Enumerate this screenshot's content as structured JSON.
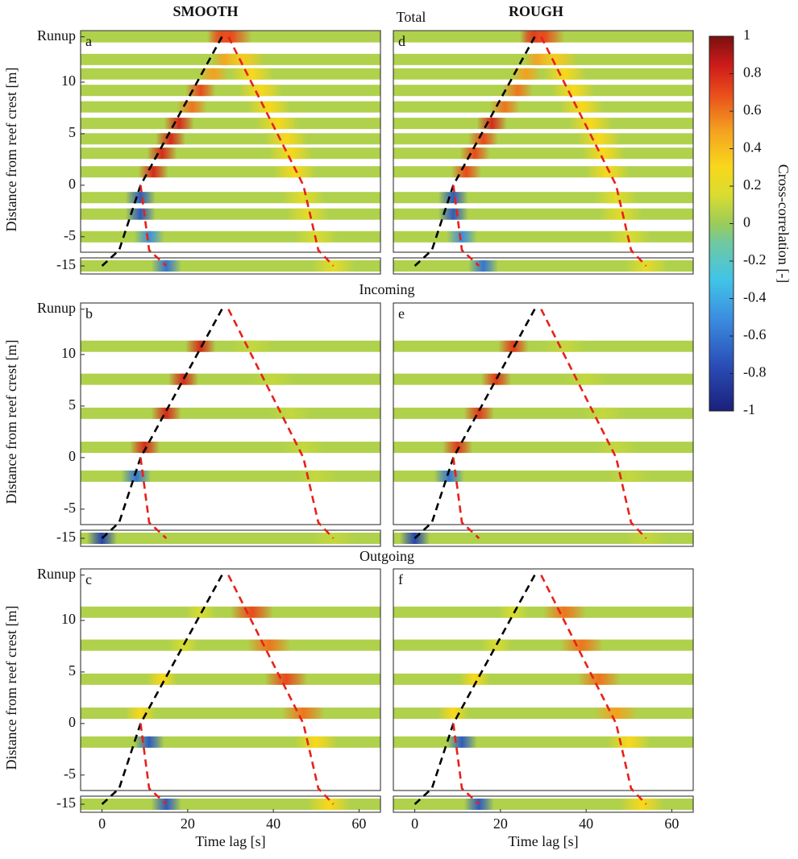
{
  "column_titles": [
    "SMOOTH",
    "ROUGH"
  ],
  "row_titles": [
    "Total",
    "Incoming",
    "Outgoing"
  ],
  "colorbar": {
    "label": "Cross-correlation [-]",
    "lim": [
      -1,
      1
    ],
    "ticks": [
      1,
      0.8,
      0.6,
      0.4,
      0.2,
      0,
      -0.2,
      -0.4,
      -0.6,
      -0.8,
      -1
    ]
  },
  "chart_data": [
    {
      "type": "xcorr",
      "panel": "a",
      "ylabel": "Distance from reef crest [m]",
      "xlim": [
        -5,
        65
      ],
      "ylim": [
        -6.5,
        15
      ],
      "ylim_break": [
        -15.8,
        -14.2
      ],
      "yticks": [
        {
          "value": 14.4,
          "label": "Runup"
        },
        10,
        5,
        0,
        -5,
        -15
      ],
      "stripes": {
        "distance": [
          14.4,
          12.2,
          10.8,
          9.2,
          7.6,
          6.0,
          4.5,
          3.1,
          1.3,
          -1.2,
          -2.8,
          -5.0,
          -15
        ],
        "incoming_lag": [
          28,
          29,
          26,
          23,
          21,
          18,
          16,
          14,
          12,
          9,
          9,
          11,
          15
        ],
        "incoming_peak": [
          0.7,
          0.5,
          0.5,
          0.7,
          0.6,
          0.8,
          0.8,
          0.8,
          0.8,
          -0.7,
          -0.7,
          -0.5,
          -0.6
        ],
        "outgoing_lag": [
          30,
          33,
          35,
          37,
          39,
          41,
          43,
          44,
          45,
          47,
          48,
          50,
          54
        ],
        "outgoing_peak": [
          0.7,
          0.35,
          0.3,
          0.3,
          0.3,
          0.3,
          0.3,
          0.3,
          0.3,
          0.2,
          0.2,
          0.15,
          0.2
        ]
      },
      "lines": [
        {
          "color": "#000000",
          "x": [
            0,
            4,
            9,
            28
          ],
          "y": [
            -15,
            -6.3,
            0,
            14.4
          ]
        },
        {
          "color": "#e8201a",
          "x": [
            29.5,
            47,
            50.5,
            54
          ],
          "y": [
            14.4,
            0,
            -6.3,
            -15
          ]
        },
        {
          "color": "#e8201a",
          "x": [
            9,
            11,
            15
          ],
          "y": [
            0,
            -6.3,
            -15
          ]
        }
      ]
    },
    {
      "type": "xcorr",
      "panel": "b",
      "ylabel": "Distance from reef crest [m]",
      "xlim": [
        -5,
        65
      ],
      "ylim": [
        -6.5,
        15
      ],
      "ylim_break": [
        -15.8,
        -14.2
      ],
      "yticks": [
        {
          "value": 14.4,
          "label": "Runup"
        },
        10,
        5,
        0,
        -5,
        -15
      ],
      "stripes": {
        "distance": [
          10.8,
          7.6,
          4.3,
          1.0,
          -1.8,
          -15
        ],
        "incoming_lag": [
          23,
          19,
          15,
          10,
          8,
          0
        ],
        "incoming_peak": [
          0.8,
          0.8,
          0.8,
          0.8,
          -0.6,
          -0.8
        ],
        "outgoing_lag": [
          35,
          40,
          44,
          47,
          50,
          54
        ],
        "outgoing_peak": [
          0.1,
          0.1,
          0.1,
          0.1,
          0.1,
          0.1
        ]
      },
      "lines": [
        {
          "color": "#000000",
          "x": [
            0,
            4,
            9,
            28
          ],
          "y": [
            -15,
            -6.3,
            0,
            14.4
          ]
        },
        {
          "color": "#e8201a",
          "x": [
            29.5,
            47,
            50.5,
            54
          ],
          "y": [
            14.4,
            0,
            -6.3,
            -15
          ]
        },
        {
          "color": "#e8201a",
          "x": [
            9,
            11,
            15
          ],
          "y": [
            0,
            -6.3,
            -15
          ]
        }
      ]
    },
    {
      "type": "xcorr",
      "panel": "c",
      "ylabel": "Distance from reef crest [m]",
      "xlabel": "Time lag [s]",
      "xlim": [
        -5,
        65
      ],
      "ylim": [
        -6.5,
        15
      ],
      "ylim_break": [
        -15.8,
        -14.2
      ],
      "xticks": [
        0,
        20,
        40,
        60
      ],
      "yticks": [
        {
          "value": 14.4,
          "label": "Runup"
        },
        10,
        5,
        0,
        -5,
        -15
      ],
      "stripes": {
        "distance": [
          10.8,
          7.6,
          4.3,
          1.0,
          -1.8,
          -15
        ],
        "incoming_lag": [
          23,
          19,
          14,
          9,
          11,
          15
        ],
        "incoming_peak": [
          0.15,
          0.15,
          0.3,
          0.3,
          -0.7,
          -0.7
        ],
        "outgoing_lag": [
          35,
          39,
          43,
          47,
          50,
          53
        ],
        "outgoing_peak": [
          0.7,
          0.6,
          0.7,
          0.6,
          0.3,
          0.3
        ]
      },
      "lines": [
        {
          "color": "#000000",
          "x": [
            0,
            4,
            9,
            28
          ],
          "y": [
            -15,
            -6.3,
            0,
            14.4
          ]
        },
        {
          "color": "#e8201a",
          "x": [
            29.5,
            47,
            50.5,
            54
          ],
          "y": [
            14.4,
            0,
            -6.3,
            -15
          ]
        },
        {
          "color": "#e8201a",
          "x": [
            9,
            11,
            15
          ],
          "y": [
            0,
            -6.3,
            -15
          ]
        }
      ]
    },
    {
      "type": "xcorr",
      "panel": "d",
      "xlim": [
        -5,
        65
      ],
      "ylim": [
        -6.5,
        15
      ],
      "ylim_break": [
        -15.8,
        -14.2
      ],
      "stripes": {
        "distance": [
          14.4,
          12.2,
          10.8,
          9.2,
          7.6,
          6.0,
          4.5,
          3.1,
          1.3,
          -1.2,
          -2.8,
          -5.0,
          -15
        ],
        "incoming_lag": [
          28,
          29,
          26,
          24,
          21,
          18,
          16,
          14,
          12,
          9,
          9,
          11,
          16
        ],
        "incoming_peak": [
          0.8,
          0.5,
          0.5,
          0.6,
          0.6,
          0.8,
          0.7,
          0.7,
          0.7,
          -0.7,
          -0.7,
          -0.5,
          -0.6
        ],
        "outgoing_lag": [
          30,
          33,
          35,
          37,
          39,
          41,
          43,
          44,
          45,
          47,
          48,
          50,
          54
        ],
        "outgoing_peak": [
          0.7,
          0.35,
          0.3,
          0.3,
          0.3,
          0.3,
          0.3,
          0.3,
          0.3,
          0.2,
          0.2,
          0.15,
          0.2
        ]
      },
      "lines": [
        {
          "color": "#000000",
          "x": [
            0,
            4,
            9,
            28
          ],
          "y": [
            -15,
            -6.3,
            0,
            14.4
          ]
        },
        {
          "color": "#e8201a",
          "x": [
            29.5,
            47,
            50.5,
            54
          ],
          "y": [
            14.4,
            0,
            -6.3,
            -15
          ]
        },
        {
          "color": "#e8201a",
          "x": [
            9,
            11,
            15
          ],
          "y": [
            0,
            -6.3,
            -15
          ]
        }
      ]
    },
    {
      "type": "xcorr",
      "panel": "e",
      "xlim": [
        -5,
        65
      ],
      "ylim": [
        -6.5,
        15
      ],
      "ylim_break": [
        -15.8,
        -14.2
      ],
      "stripes": {
        "distance": [
          10.8,
          7.6,
          4.3,
          1.0,
          -1.8,
          -15
        ],
        "incoming_lag": [
          23,
          19,
          15,
          10,
          8,
          0
        ],
        "incoming_peak": [
          0.75,
          0.75,
          0.75,
          0.75,
          -0.6,
          -0.8
        ],
        "outgoing_lag": [
          35,
          40,
          44,
          47,
          50,
          54
        ],
        "outgoing_peak": [
          0.1,
          0.1,
          0.1,
          0.1,
          0.1,
          0.1
        ]
      },
      "lines": [
        {
          "color": "#000000",
          "x": [
            0,
            4,
            9,
            28
          ],
          "y": [
            -15,
            -6.3,
            0,
            14.4
          ]
        },
        {
          "color": "#e8201a",
          "x": [
            29.5,
            47,
            50.5,
            54
          ],
          "y": [
            14.4,
            0,
            -6.3,
            -15
          ]
        },
        {
          "color": "#e8201a",
          "x": [
            9,
            11,
            15
          ],
          "y": [
            0,
            -6.3,
            -15
          ]
        }
      ]
    },
    {
      "type": "xcorr",
      "panel": "f",
      "xlabel": "Time lag [s]",
      "xlim": [
        -5,
        65
      ],
      "ylim": [
        -6.5,
        15
      ],
      "ylim_break": [
        -15.8,
        -14.2
      ],
      "xticks": [
        0,
        20,
        40,
        60
      ],
      "stripes": {
        "distance": [
          10.8,
          7.6,
          4.3,
          1.0,
          -1.8,
          -15
        ],
        "incoming_lag": [
          23,
          19,
          14,
          9,
          11,
          15
        ],
        "incoming_peak": [
          0.15,
          0.15,
          0.3,
          0.3,
          -0.7,
          -0.7
        ],
        "outgoing_lag": [
          35,
          39,
          43,
          47,
          50,
          53
        ],
        "outgoing_peak": [
          0.6,
          0.6,
          0.6,
          0.5,
          0.3,
          0.3
        ]
      },
      "lines": [
        {
          "color": "#000000",
          "x": [
            0,
            4,
            9,
            28
          ],
          "y": [
            -15,
            -6.3,
            0,
            14.4
          ]
        },
        {
          "color": "#e8201a",
          "x": [
            29.5,
            47,
            50.5,
            54
          ],
          "y": [
            14.4,
            0,
            -6.3,
            -15
          ]
        },
        {
          "color": "#e8201a",
          "x": [
            9,
            11,
            15
          ],
          "y": [
            0,
            -6.3,
            -15
          ]
        }
      ]
    }
  ]
}
